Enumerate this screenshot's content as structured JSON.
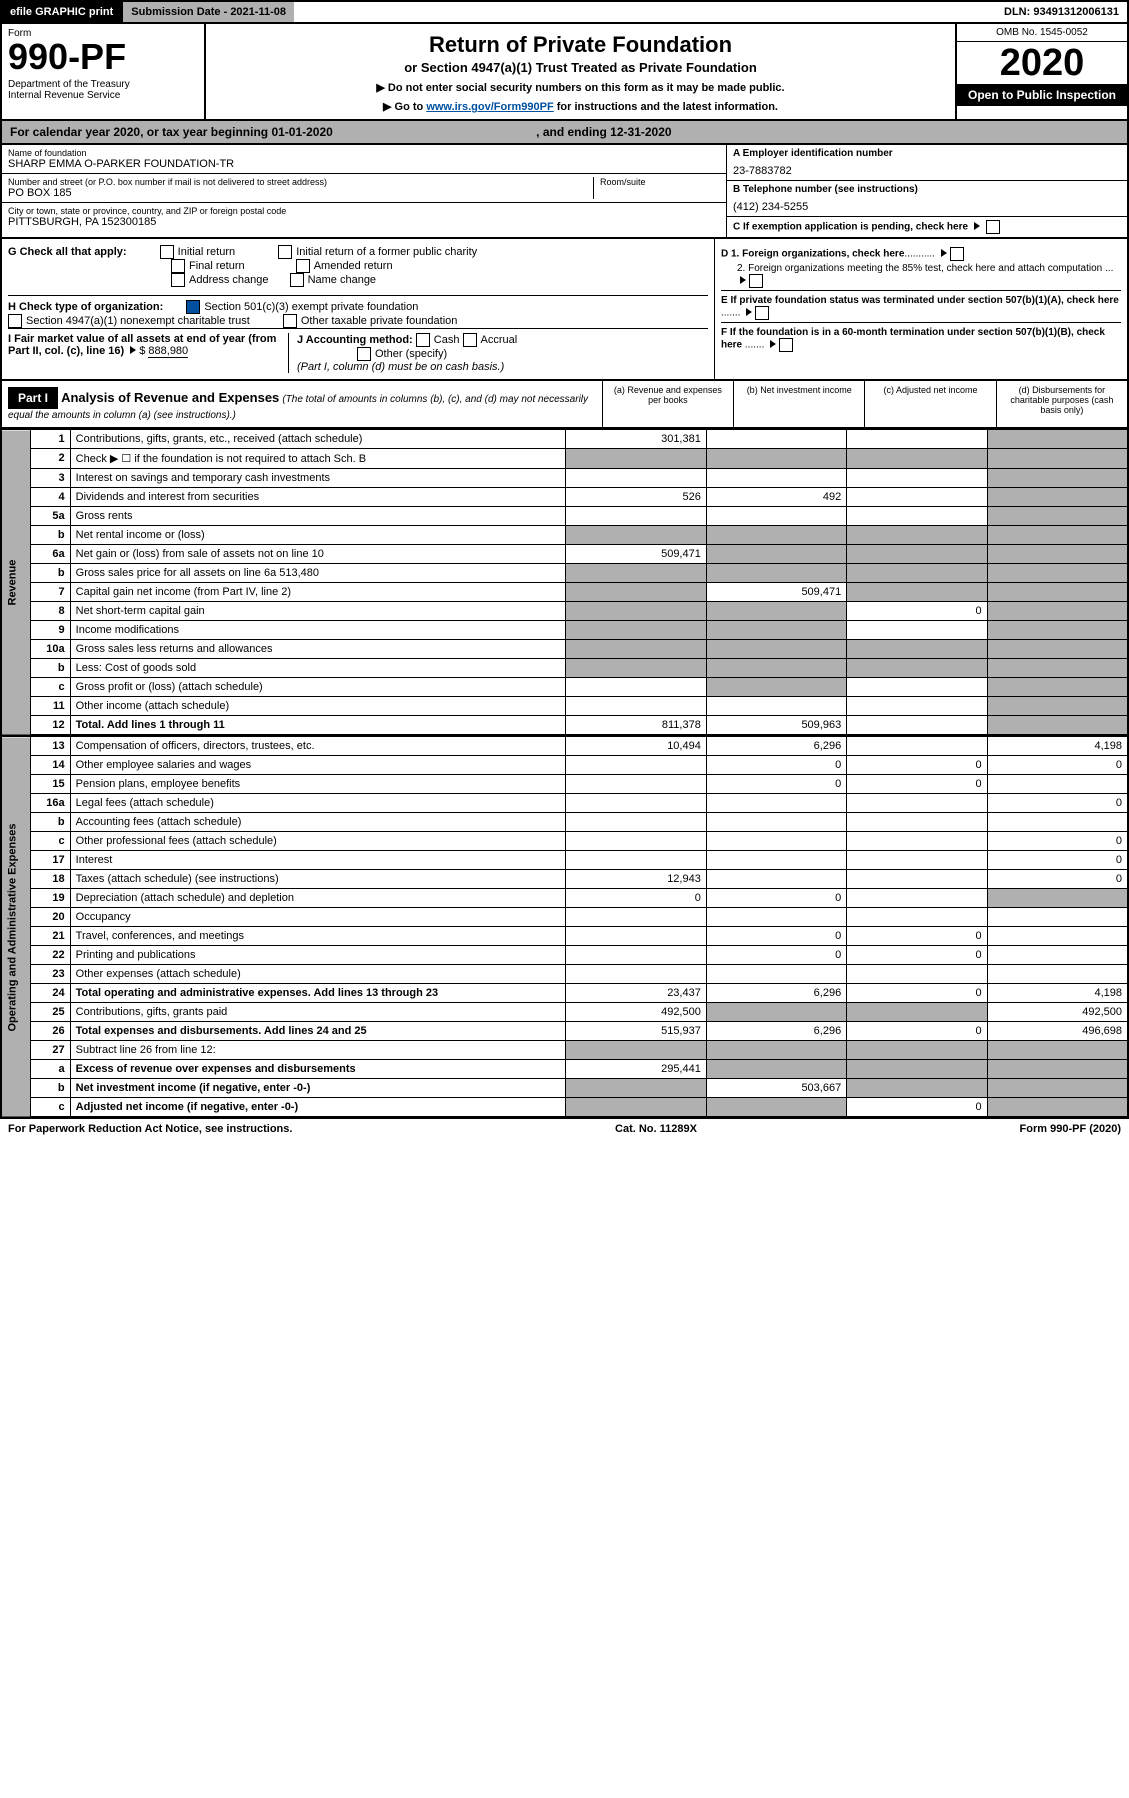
{
  "topbar": {
    "efile": "efile GRAPHIC print",
    "submission": "Submission Date - 2021-11-08",
    "dln": "DLN: 93491312006131"
  },
  "header": {
    "form_label": "Form",
    "form_number": "990-PF",
    "dept": "Department of the Treasury\nInternal Revenue Service",
    "title": "Return of Private Foundation",
    "subtitle1": "or Section 4947(a)(1) Trust Treated as Private Foundation",
    "subtitle2": "▶ Do not enter social security numbers on this form as it may be made public.",
    "subtitle3": "▶ Go to www.irs.gov/Form990PF for instructions and the latest information.",
    "link_text": "www.irs.gov/Form990PF",
    "omb": "OMB No. 1545-0052",
    "year": "2020",
    "open": "Open to Public Inspection"
  },
  "calendar": {
    "text": "For calendar year 2020, or tax year beginning 01-01-2020",
    "ending": ", and ending 12-31-2020"
  },
  "foundation": {
    "name_label": "Name of foundation",
    "name": "SHARP EMMA O-PARKER FOUNDATION-TR",
    "addr_label": "Number and street (or P.O. box number if mail is not delivered to street address)",
    "addr": "PO BOX 185",
    "room_label": "Room/suite",
    "city_label": "City or town, state or province, country, and ZIP or foreign postal code",
    "city": "PITTSBURGH, PA  152300185",
    "ein_label": "A Employer identification number",
    "ein": "23-7883782",
    "phone_label": "B Telephone number (see instructions)",
    "phone": "(412) 234-5255",
    "c_label": "C If exemption application is pending, check here"
  },
  "section_g": {
    "label": "G Check all that apply:",
    "opts": [
      "Initial return",
      "Final return",
      "Address change",
      "Initial return of a former public charity",
      "Amended return",
      "Name change"
    ]
  },
  "section_h": {
    "label": "H Check type of organization:",
    "opt1": "Section 501(c)(3) exempt private foundation",
    "opt2": "Section 4947(a)(1) nonexempt charitable trust",
    "opt3": "Other taxable private foundation"
  },
  "section_i": {
    "label": "I Fair market value of all assets at end of year (from Part II, col. (c), line 16)",
    "value": "888,980"
  },
  "section_j": {
    "label": "J Accounting method:",
    "cash": "Cash",
    "accrual": "Accrual",
    "other": "Other (specify)",
    "note": "(Part I, column (d) must be on cash basis.)"
  },
  "section_d": {
    "d1": "D 1. Foreign organizations, check here",
    "d2": "2. Foreign organizations meeting the 85% test, check here and attach computation"
  },
  "section_e": "E If private foundation status was terminated under section 507(b)(1)(A), check here",
  "section_f": "F If the foundation is in a 60-month termination under section 507(b)(1)(B), check here",
  "part1": {
    "label": "Part I",
    "title": "Analysis of Revenue and Expenses",
    "sub": "(The total of amounts in columns (b), (c), and (d) may not necessarily equal the amounts in column (a) (see instructions).)",
    "cols": {
      "a": "(a) Revenue and expenses per books",
      "b": "(b) Net investment income",
      "c": "(c) Adjusted net income",
      "d": "(d) Disbursements for charitable purposes (cash basis only)"
    }
  },
  "sidebars": {
    "rev": "Revenue",
    "exp": "Operating and Administrative Expenses"
  },
  "rows": [
    {
      "n": "1",
      "t": "Contributions, gifts, grants, etc., received (attach schedule)",
      "a": "301,381",
      "b": "",
      "c": "",
      "d": "",
      "dg": true
    },
    {
      "n": "2",
      "t": "Check ▶ ☐ if the foundation is not required to attach Sch. B",
      "a": "",
      "b": "",
      "c": "",
      "d": "",
      "ag": true,
      "bg": true,
      "cg": true,
      "dg": true
    },
    {
      "n": "3",
      "t": "Interest on savings and temporary cash investments",
      "a": "",
      "b": "",
      "c": "",
      "d": "",
      "dg": true
    },
    {
      "n": "4",
      "t": "Dividends and interest from securities",
      "a": "526",
      "b": "492",
      "c": "",
      "d": "",
      "dg": true
    },
    {
      "n": "5a",
      "t": "Gross rents",
      "a": "",
      "b": "",
      "c": "",
      "d": "",
      "dg": true
    },
    {
      "n": "b",
      "t": "Net rental income or (loss)",
      "a": "",
      "b": "",
      "c": "",
      "d": "",
      "ag": true,
      "bg": true,
      "cg": true,
      "dg": true
    },
    {
      "n": "6a",
      "t": "Net gain or (loss) from sale of assets not on line 10",
      "a": "509,471",
      "b": "",
      "c": "",
      "d": "",
      "bg": true,
      "cg": true,
      "dg": true
    },
    {
      "n": "b",
      "t": "Gross sales price for all assets on line 6a          513,480",
      "a": "",
      "b": "",
      "c": "",
      "d": "",
      "ag": true,
      "bg": true,
      "cg": true,
      "dg": true
    },
    {
      "n": "7",
      "t": "Capital gain net income (from Part IV, line 2)",
      "a": "",
      "b": "509,471",
      "c": "",
      "d": "",
      "ag": true,
      "cg": true,
      "dg": true
    },
    {
      "n": "8",
      "t": "Net short-term capital gain",
      "a": "",
      "b": "",
      "c": "0",
      "d": "",
      "ag": true,
      "bg": true,
      "dg": true
    },
    {
      "n": "9",
      "t": "Income modifications",
      "a": "",
      "b": "",
      "c": "",
      "d": "",
      "ag": true,
      "bg": true,
      "dg": true
    },
    {
      "n": "10a",
      "t": "Gross sales less returns and allowances",
      "a": "",
      "b": "",
      "c": "",
      "d": "",
      "ag": true,
      "bg": true,
      "cg": true,
      "dg": true
    },
    {
      "n": "b",
      "t": "Less: Cost of goods sold",
      "a": "",
      "b": "",
      "c": "",
      "d": "",
      "ag": true,
      "bg": true,
      "cg": true,
      "dg": true
    },
    {
      "n": "c",
      "t": "Gross profit or (loss) (attach schedule)",
      "a": "",
      "b": "",
      "c": "",
      "d": "",
      "bg": true,
      "dg": true
    },
    {
      "n": "11",
      "t": "Other income (attach schedule)",
      "a": "",
      "b": "",
      "c": "",
      "d": "",
      "dg": true
    },
    {
      "n": "12",
      "t": "Total. Add lines 1 through 11",
      "a": "811,378",
      "b": "509,963",
      "c": "",
      "d": "",
      "bold": true,
      "dg": true
    }
  ],
  "exprows": [
    {
      "n": "13",
      "t": "Compensation of officers, directors, trustees, etc.",
      "a": "10,494",
      "b": "6,296",
      "c": "",
      "d": "4,198"
    },
    {
      "n": "14",
      "t": "Other employee salaries and wages",
      "a": "",
      "b": "0",
      "c": "0",
      "d": "0"
    },
    {
      "n": "15",
      "t": "Pension plans, employee benefits",
      "a": "",
      "b": "0",
      "c": "0",
      "d": ""
    },
    {
      "n": "16a",
      "t": "Legal fees (attach schedule)",
      "a": "",
      "b": "",
      "c": "",
      "d": "0"
    },
    {
      "n": "b",
      "t": "Accounting fees (attach schedule)",
      "a": "",
      "b": "",
      "c": "",
      "d": ""
    },
    {
      "n": "c",
      "t": "Other professional fees (attach schedule)",
      "a": "",
      "b": "",
      "c": "",
      "d": "0"
    },
    {
      "n": "17",
      "t": "Interest",
      "a": "",
      "b": "",
      "c": "",
      "d": "0"
    },
    {
      "n": "18",
      "t": "Taxes (attach schedule) (see instructions)",
      "a": "12,943",
      "b": "",
      "c": "",
      "d": "0"
    },
    {
      "n": "19",
      "t": "Depreciation (attach schedule) and depletion",
      "a": "0",
      "b": "0",
      "c": "",
      "d": "",
      "dg": true
    },
    {
      "n": "20",
      "t": "Occupancy",
      "a": "",
      "b": "",
      "c": "",
      "d": ""
    },
    {
      "n": "21",
      "t": "Travel, conferences, and meetings",
      "a": "",
      "b": "0",
      "c": "0",
      "d": ""
    },
    {
      "n": "22",
      "t": "Printing and publications",
      "a": "",
      "b": "0",
      "c": "0",
      "d": ""
    },
    {
      "n": "23",
      "t": "Other expenses (attach schedule)",
      "a": "",
      "b": "",
      "c": "",
      "d": ""
    },
    {
      "n": "24",
      "t": "Total operating and administrative expenses. Add lines 13 through 23",
      "a": "23,437",
      "b": "6,296",
      "c": "0",
      "d": "4,198",
      "bold": true
    },
    {
      "n": "25",
      "t": "Contributions, gifts, grants paid",
      "a": "492,500",
      "b": "",
      "c": "",
      "d": "492,500",
      "bg": true,
      "cg": true
    },
    {
      "n": "26",
      "t": "Total expenses and disbursements. Add lines 24 and 25",
      "a": "515,937",
      "b": "6,296",
      "c": "0",
      "d": "496,698",
      "bold": true
    },
    {
      "n": "27",
      "t": "Subtract line 26 from line 12:",
      "a": "",
      "b": "",
      "c": "",
      "d": "",
      "ag": true,
      "bg": true,
      "cg": true,
      "dg": true
    },
    {
      "n": "a",
      "t": "Excess of revenue over expenses and disbursements",
      "a": "295,441",
      "b": "",
      "c": "",
      "d": "",
      "bold": true,
      "bg": true,
      "cg": true,
      "dg": true
    },
    {
      "n": "b",
      "t": "Net investment income (if negative, enter -0-)",
      "a": "",
      "b": "503,667",
      "c": "",
      "d": "",
      "bold": true,
      "ag": true,
      "cg": true,
      "dg": true
    },
    {
      "n": "c",
      "t": "Adjusted net income (if negative, enter -0-)",
      "a": "",
      "b": "",
      "c": "0",
      "d": "",
      "bold": true,
      "ag": true,
      "bg": true,
      "dg": true
    }
  ],
  "footer": {
    "left": "For Paperwork Reduction Act Notice, see instructions.",
    "mid": "Cat. No. 11289X",
    "right": "Form 990-PF (2020)"
  }
}
